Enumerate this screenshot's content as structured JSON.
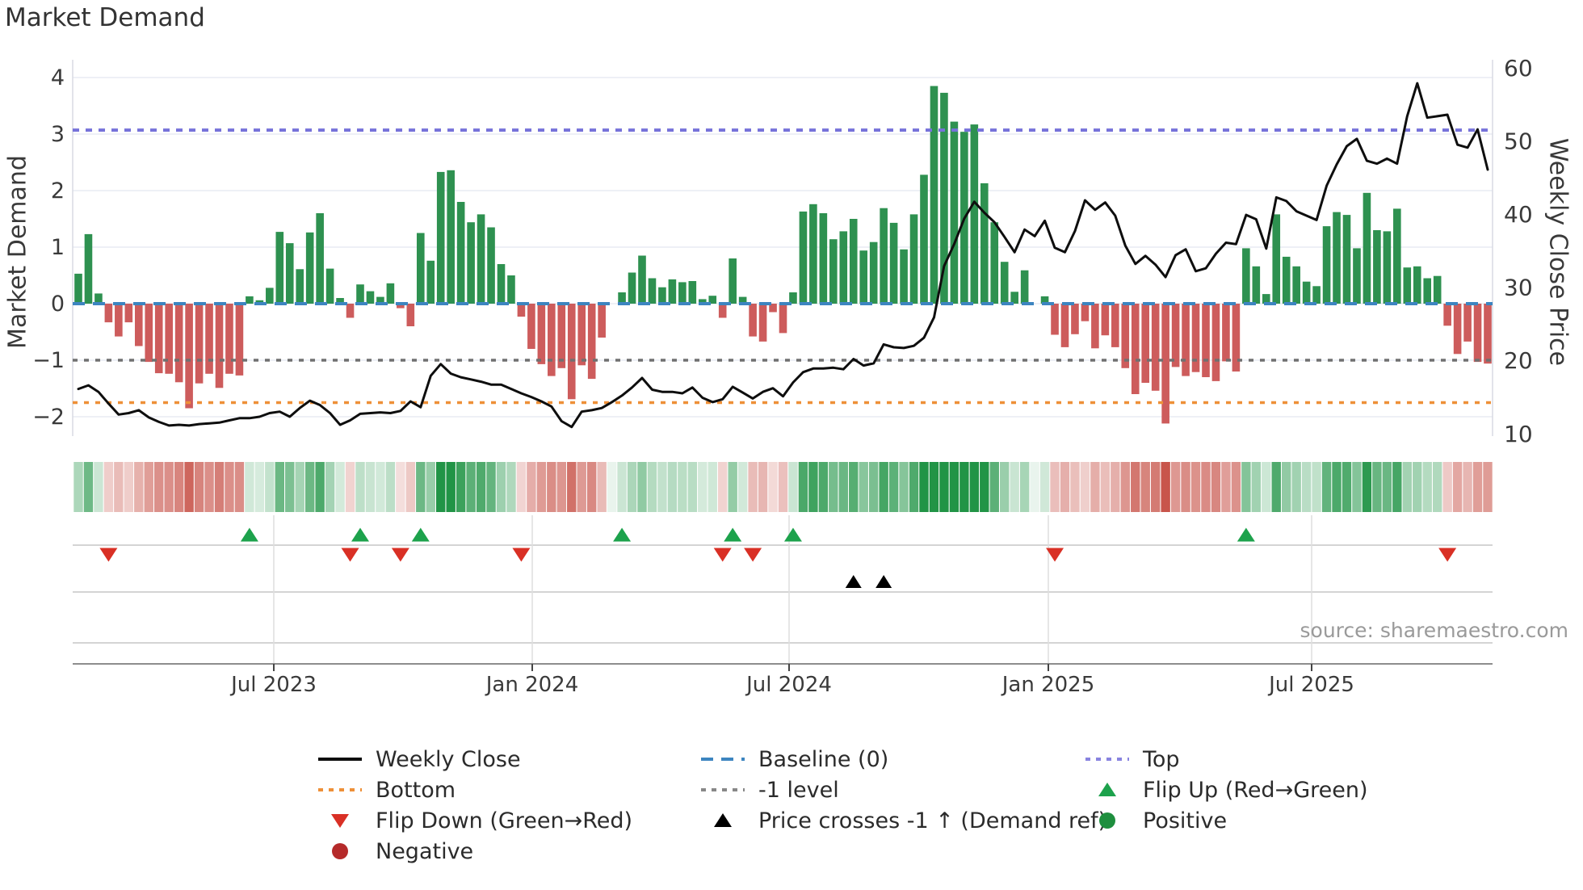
{
  "header": {
    "title": "Market Demand"
  },
  "footer": {
    "source": "source: sharemaestro.com"
  },
  "colors": {
    "bar_positive": "#2e9150",
    "bar_negative": "#cd5c5c",
    "heat_green_base": "#219447",
    "heat_red_base": "#c8554b",
    "price_line": "#0e0e0e",
    "baseline": "#3d85c0",
    "top_line": "#7672da",
    "bottom_line": "#ee9038",
    "minus_one_line": "#707070",
    "flip_up": "#1da24c",
    "flip_down": "#d93025",
    "price_cross": "#000000",
    "positive_dot": "#1e8e3e",
    "negative_dot": "#b52a2a",
    "grid": "#e9ecf4",
    "spine": "#d8dae3",
    "lane_line": "#c6c6c6",
    "axis_line": "#8d8d8d",
    "vgrid": "#dedede",
    "tick": "#444444",
    "text": "#3a3a3a"
  },
  "legend": {
    "items": [
      {
        "label": "Weekly Close",
        "swatch": "line",
        "color": "#0e0e0e",
        "dash": ""
      },
      {
        "label": "Bottom",
        "swatch": "line",
        "color": "#ee9038",
        "dash": "6 7"
      },
      {
        "label": "Flip Down (Green→Red)",
        "swatch": "tri-down",
        "color": "#d93025"
      },
      {
        "label": "Negative",
        "swatch": "dot",
        "color": "#b52a2a"
      },
      {
        "label": "Baseline (0)",
        "swatch": "line",
        "color": "#3d85c0",
        "dash": "15 10"
      },
      {
        "label": "-1 level",
        "swatch": "line",
        "color": "#888888",
        "dash": "6 7"
      },
      {
        "label": "Price crosses -1 ↑ (Demand ref)",
        "swatch": "tri-up",
        "color": "#000000"
      },
      {
        "label": "",
        "swatch": "none",
        "color": ""
      },
      {
        "label": "Top",
        "swatch": "line",
        "color": "#8883e0",
        "dash": "6 7"
      },
      {
        "label": "Flip Up (Red→Green)",
        "swatch": "tri-up",
        "color": "#1da24c"
      },
      {
        "label": "Positive",
        "swatch": "dot",
        "color": "#1e8e3e"
      }
    ]
  },
  "chart_data": {
    "type": "combo",
    "title": "Market Demand",
    "ylabel_left": "Market Demand",
    "ylabel_right": "Weekly Close Price",
    "x_range_note": "weekly data, ~Feb 2023 to ~Nov 2025",
    "x_tick_labels": [
      "Jul 2023",
      "Jan 2024",
      "Jul 2024",
      "Jan 2025",
      "Jul 2025"
    ],
    "yticks_left": [
      "4",
      "3",
      "2",
      "1",
      "0",
      "−1",
      "−2"
    ],
    "ytick_values_left": [
      4,
      3,
      2,
      1,
      0,
      -1,
      -2
    ],
    "yticks_right": [
      "60",
      "50",
      "40",
      "30",
      "20",
      "10"
    ],
    "ytick_values_right": [
      60,
      50,
      40,
      30,
      20,
      10
    ],
    "ylim_left": [
      -2.35,
      4.3
    ],
    "ylim_right": [
      9.8,
      61.2
    ],
    "ref_lines": {
      "top": 3.07,
      "baseline": 0,
      "minus_one": -1,
      "bottom": -1.75
    },
    "series": [
      {
        "name": "Market Demand",
        "type": "bar",
        "axis": "left",
        "values": [
          0.53,
          1.23,
          0.18,
          -0.33,
          -0.58,
          -0.33,
          -0.75,
          -1.03,
          -1.23,
          -1.24,
          -1.39,
          -1.85,
          -1.41,
          -1.24,
          -1.49,
          -1.24,
          -1.27,
          0.13,
          0.06,
          0.28,
          1.27,
          1.07,
          0.61,
          1.26,
          1.6,
          0.62,
          0.1,
          -0.25,
          0.34,
          0.22,
          0.12,
          0.36,
          -0.08,
          -0.4,
          1.25,
          0.76,
          2.33,
          2.36,
          1.8,
          1.44,
          1.58,
          1.35,
          0.7,
          0.5,
          -0.23,
          -0.8,
          -1.07,
          -1.28,
          -1.14,
          -1.69,
          -1.09,
          -1.33,
          -0.6,
          0,
          0.2,
          0.55,
          0.85,
          0.45,
          0.29,
          0.43,
          0.38,
          0.4,
          0.08,
          0.14,
          -0.25,
          0.8,
          0.12,
          -0.58,
          -0.67,
          -0.15,
          -0.52,
          0.2,
          1.63,
          1.76,
          1.6,
          1.14,
          1.28,
          1.5,
          0.94,
          1.09,
          1.69,
          1.43,
          0.96,
          1.58,
          2.28,
          3.85,
          3.73,
          3.22,
          3.04,
          3.17,
          2.13,
          1.44,
          0.74,
          0.21,
          0.59,
          0,
          0.13,
          -0.55,
          -0.77,
          -0.54,
          -0.31,
          -0.79,
          -0.56,
          -0.77,
          -1.14,
          -1.6,
          -1.4,
          -1.54,
          -2.12,
          -1.12,
          -1.28,
          -1.21,
          -1.3,
          -1.37,
          -1.02,
          -1.2,
          0.98,
          0.66,
          0.17,
          1.58,
          0.83,
          0.66,
          0.39,
          0.31,
          1.37,
          1.62,
          1.57,
          0.98,
          1.96,
          1.3,
          1.28,
          1.68,
          0.64,
          0.66,
          0.45,
          0.49,
          -0.39,
          -0.89,
          -0.67,
          -1.03,
          -1.06
        ]
      },
      {
        "name": "Weekly Close",
        "type": "line",
        "axis": "right",
        "values": [
          16.2,
          16.7,
          15.8,
          14.2,
          12.7,
          12.9,
          13.3,
          12.3,
          11.7,
          11.2,
          11.3,
          11.2,
          11.4,
          11.5,
          11.6,
          11.9,
          12.2,
          12.2,
          12.4,
          12.9,
          13.1,
          12.4,
          13.6,
          14.6,
          14.0,
          12.9,
          11.3,
          11.9,
          12.8,
          12.9,
          13.0,
          12.9,
          13.2,
          14.5,
          13.7,
          18.0,
          19.6,
          18.3,
          17.8,
          17.5,
          17.2,
          16.8,
          16.8,
          16.2,
          15.6,
          15.1,
          14.5,
          13.8,
          11.8,
          11.0,
          13.1,
          13.3,
          13.6,
          14.4,
          15.3,
          16.4,
          17.7,
          16.1,
          15.8,
          15.8,
          15.6,
          16.4,
          15.0,
          14.4,
          14.8,
          16.5,
          15.7,
          14.9,
          15.8,
          16.3,
          15.2,
          17.1,
          18.5,
          19.0,
          19.0,
          19.1,
          18.9,
          20.3,
          19.4,
          19.7,
          22.3,
          21.9,
          21.8,
          22.1,
          23.2,
          26.0,
          33.0,
          36.0,
          39.5,
          41.8,
          40.3,
          39.0,
          37.0,
          34.9,
          38.0,
          37.1,
          39.2,
          35.5,
          34.9,
          37.8,
          42.0,
          40.7,
          41.7,
          39.9,
          35.8,
          33.3,
          34.4,
          33.2,
          31.5,
          34.5,
          35.3,
          32.3,
          32.7,
          34.7,
          36.2,
          36.0,
          40.0,
          39.4,
          35.4,
          42.4,
          41.9,
          40.5,
          39.9,
          39.3,
          44.0,
          46.9,
          49.4,
          50.4,
          47.4,
          47.0,
          47.7,
          47.0,
          53.5,
          58.0,
          53.3,
          53.5,
          53.7,
          49.6,
          49.2,
          51.7,
          46.2
        ]
      }
    ],
    "markers": {
      "flip_up_idx": [
        17,
        28,
        34,
        54,
        65,
        71,
        116
      ],
      "flip_down_idx": [
        3,
        27,
        32,
        44,
        64,
        67,
        97,
        136
      ],
      "price_cross_idx": [
        77,
        80
      ]
    },
    "heat_strip": "weekly cells colored by bar sign and magnitude",
    "grid": "horizontal on",
    "legend_position": "bottom"
  }
}
